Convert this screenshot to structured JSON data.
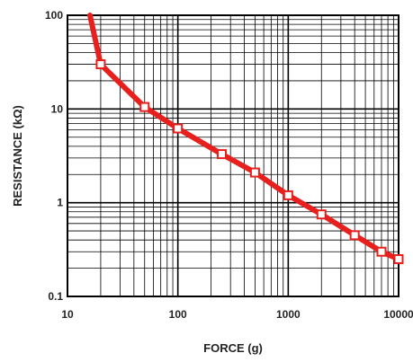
{
  "chart_data": {
    "type": "line",
    "title": "",
    "xlabel": "FORCE (g)",
    "ylabel": "RESISTANCE (kΩ)",
    "x_scale": "log",
    "y_scale": "log",
    "xlim": [
      10,
      10000
    ],
    "ylim": [
      0.1,
      100
    ],
    "grid": true,
    "x_ticks": [
      {
        "value": 10,
        "label": "10"
      },
      {
        "value": 100,
        "label": "100"
      },
      {
        "value": 1000,
        "label": "1000"
      },
      {
        "value": 10000,
        "label": "10000"
      }
    ],
    "y_ticks": [
      {
        "value": 100,
        "label": "100"
      },
      {
        "value": 10,
        "label": "10"
      },
      {
        "value": 1,
        "label": "1"
      },
      {
        "value": 0.1,
        "label": "0.1"
      }
    ],
    "series": [
      {
        "color": "#e8201d",
        "curve": [
          {
            "x": 16,
            "y": 100
          },
          {
            "x": 20,
            "y": 30
          }
        ],
        "points": [
          {
            "x": 20,
            "y": 30
          },
          {
            "x": 50,
            "y": 10.5
          },
          {
            "x": 100,
            "y": 6.2
          },
          {
            "x": 250,
            "y": 3.3
          },
          {
            "x": 500,
            "y": 2.1
          },
          {
            "x": 1000,
            "y": 1.2
          },
          {
            "x": 2000,
            "y": 0.75
          },
          {
            "x": 4000,
            "y": 0.45
          },
          {
            "x": 7000,
            "y": 0.3
          },
          {
            "x": 10000,
            "y": 0.25
          }
        ]
      }
    ]
  }
}
